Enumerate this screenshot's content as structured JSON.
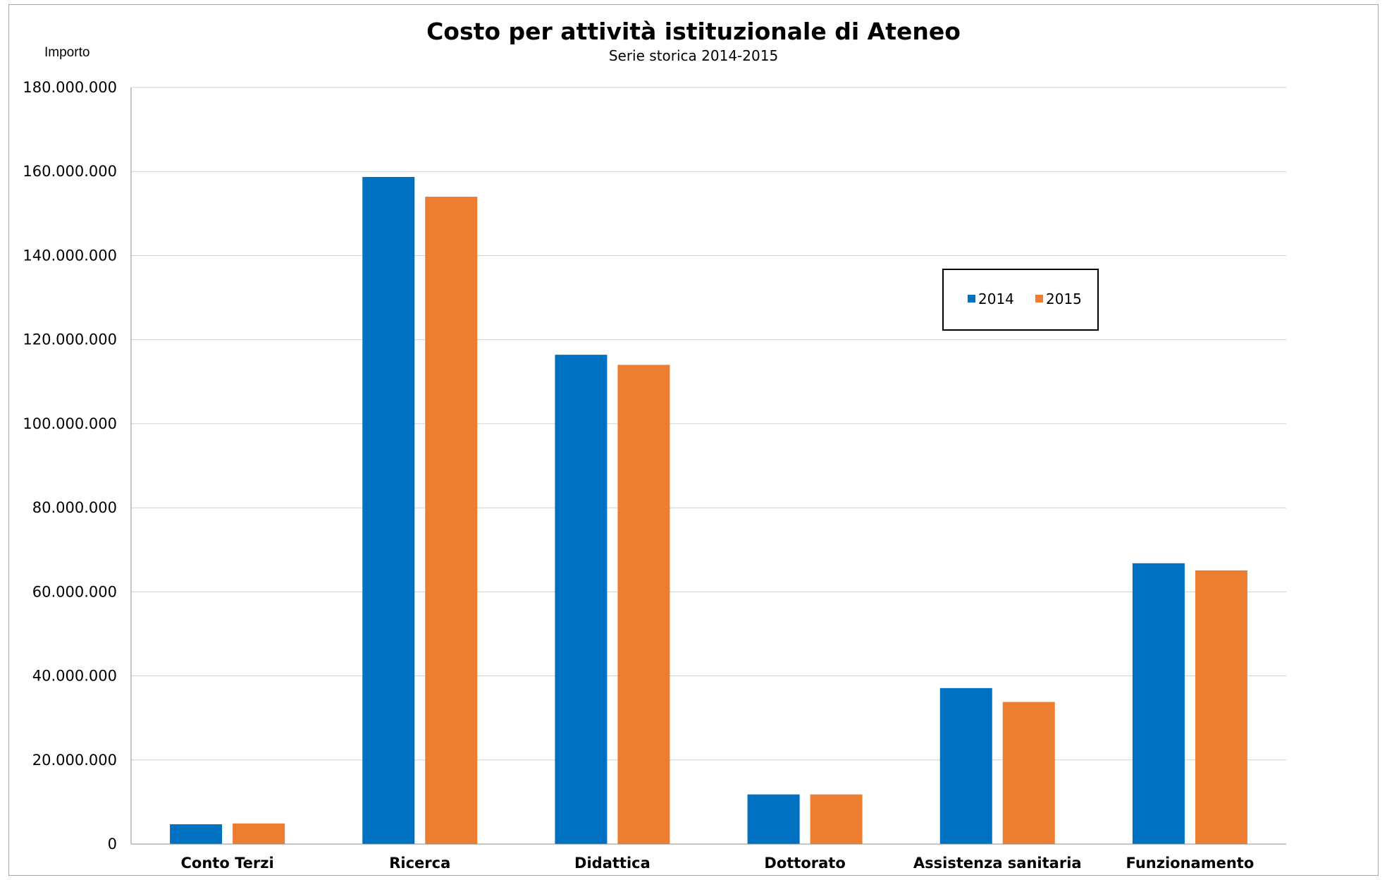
{
  "chart_data": {
    "type": "bar",
    "title": "Costo per attività istituzionale di Ateneo",
    "subtitle": "Serie storica 2014-2015",
    "ylabel": "Importo",
    "xlabel": "",
    "categories": [
      "Conto Terzi",
      "Ricerca",
      "Didattica",
      "Dottorato",
      "Assistenza sanitaria",
      "Funzionamento"
    ],
    "series": [
      {
        "name": "2014",
        "color": "#0070c0",
        "values": [
          4700000,
          158700000,
          116400000,
          11800000,
          37100000,
          66800000
        ]
      },
      {
        "name": "2015",
        "color": "#ed7d31",
        "values": [
          4900000,
          154000000,
          114000000,
          11800000,
          33800000,
          65100000
        ]
      }
    ],
    "ylim": [
      0,
      180000000
    ],
    "yticks": [
      "0",
      "20.000.000",
      "40.000.000",
      "60.000.000",
      "80.000.000",
      "100.000.000",
      "120.000.000",
      "140.000.000",
      "160.000.000",
      "180.000.000"
    ],
    "ytick_values": [
      0,
      20000000,
      40000000,
      60000000,
      80000000,
      100000000,
      120000000,
      140000000,
      160000000,
      180000000
    ],
    "grid": true,
    "legend_position": "top-right"
  }
}
